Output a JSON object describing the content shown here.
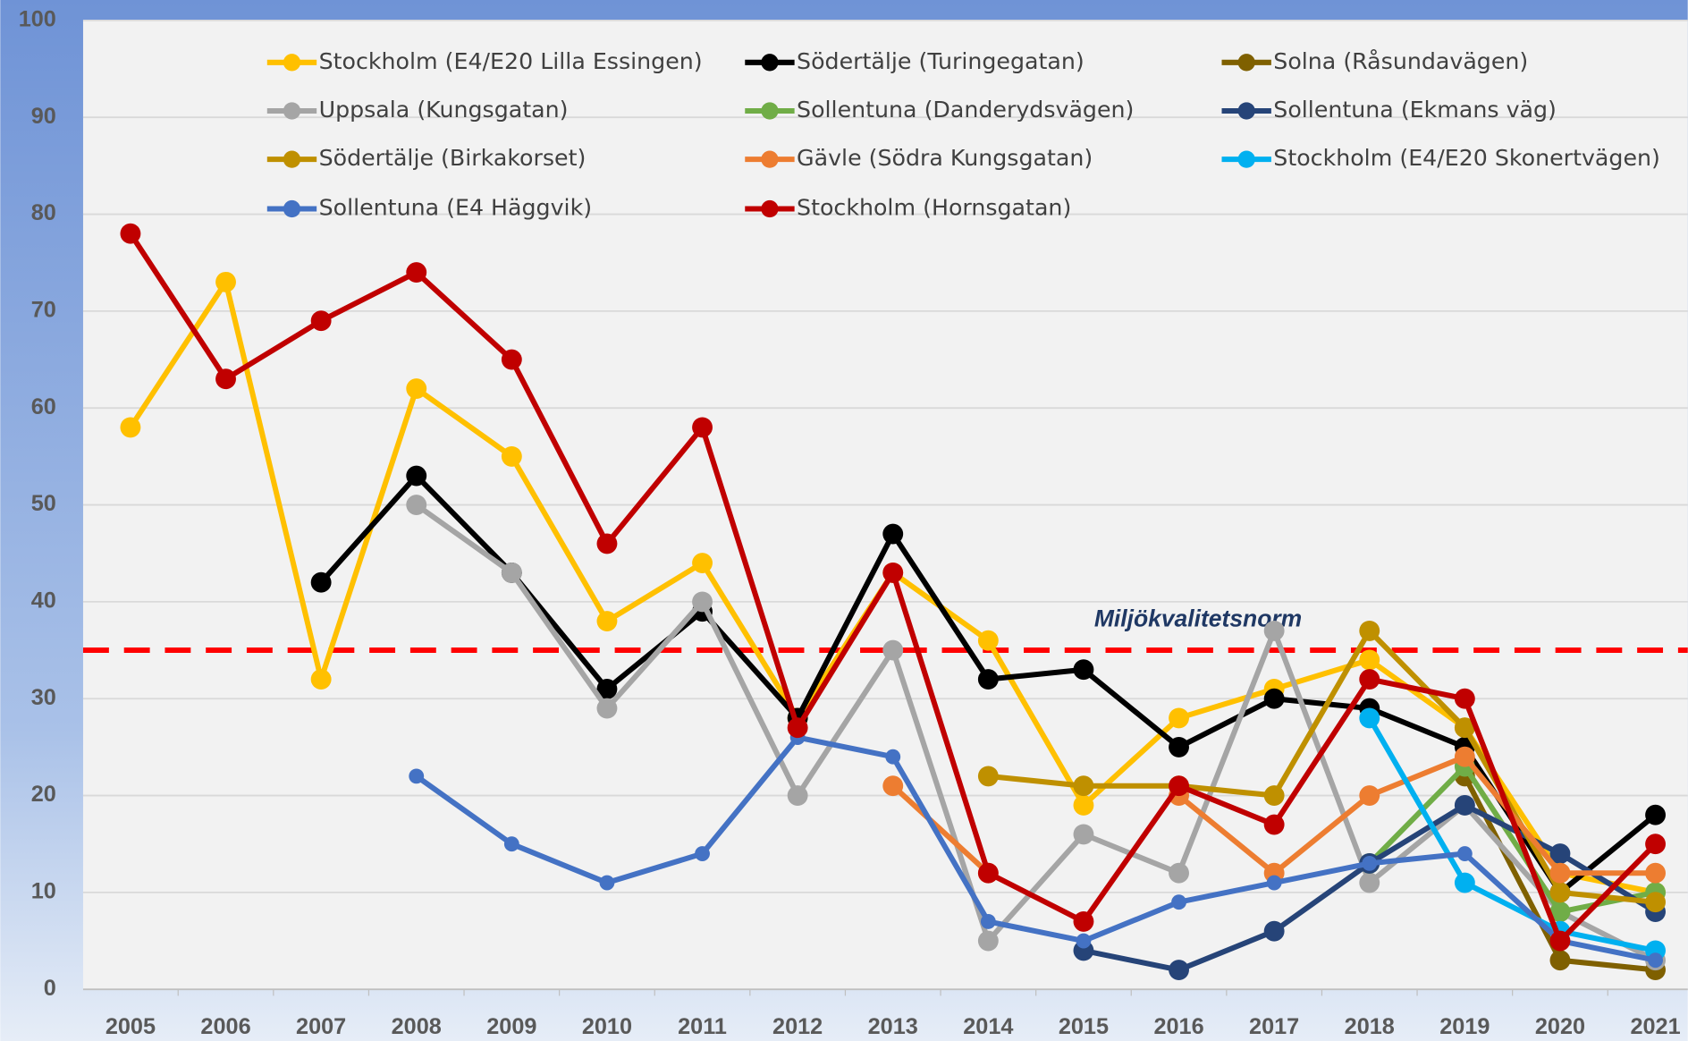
{
  "chart_data": {
    "type": "line",
    "categories": [
      "2005",
      "2006",
      "2007",
      "2008",
      "2009",
      "2010",
      "2011",
      "2012",
      "2013",
      "2014",
      "2015",
      "2016",
      "2017",
      "2018",
      "2019",
      "2020",
      "2021"
    ],
    "ylim": [
      0,
      100
    ],
    "yticks": [
      0,
      10,
      20,
      30,
      40,
      50,
      60,
      70,
      80,
      90,
      100
    ],
    "grid": true,
    "reference_line": {
      "value": 35,
      "label": "Miljökvalitetsnorm",
      "color": "#ff0000"
    },
    "series": [
      {
        "name": "Stockholm (E4/E20 Lilla Essingen)",
        "color": "#FFC000",
        "values": [
          58,
          73,
          32,
          62,
          55,
          38,
          44,
          28,
          43,
          36,
          19,
          28,
          31,
          34,
          27,
          12,
          10
        ]
      },
      {
        "name": "Södertälje (Turingegatan)",
        "color": "#000000",
        "values": [
          null,
          null,
          42,
          53,
          43,
          31,
          39,
          28,
          47,
          32,
          33,
          25,
          30,
          29,
          25,
          10,
          18
        ]
      },
      {
        "name": "Solna (Råsundavägen)",
        "color": "#7F6000",
        "values": [
          null,
          null,
          null,
          null,
          null,
          null,
          null,
          null,
          null,
          null,
          null,
          null,
          null,
          null,
          22,
          3,
          2
        ]
      },
      {
        "name": "Uppsala (Kungsgatan)",
        "color": "#A5A5A5",
        "values": [
          null,
          null,
          null,
          50,
          43,
          29,
          40,
          20,
          35,
          5,
          16,
          12,
          37,
          11,
          19,
          8,
          3
        ]
      },
      {
        "name": "Sollentuna (Danderydsvägen)",
        "color": "#70AD47",
        "values": [
          null,
          null,
          null,
          null,
          null,
          null,
          null,
          null,
          null,
          null,
          null,
          null,
          null,
          13,
          23,
          8,
          10
        ]
      },
      {
        "name": "Sollentuna (Ekmans väg)",
        "color": "#264478",
        "values": [
          null,
          null,
          null,
          null,
          null,
          null,
          null,
          null,
          null,
          null,
          4,
          2,
          6,
          13,
          19,
          14,
          8
        ]
      },
      {
        "name": "Södertälje (Birkakorset)",
        "color": "#BF9000",
        "values": [
          null,
          null,
          null,
          null,
          null,
          null,
          null,
          null,
          null,
          22,
          21,
          21,
          20,
          37,
          27,
          10,
          9
        ]
      },
      {
        "name": "Gävle (Södra Kungsgatan)",
        "color": "#ED7D31",
        "values": [
          null,
          null,
          null,
          null,
          null,
          null,
          null,
          null,
          21,
          12,
          null,
          20,
          12,
          20,
          24,
          12,
          12
        ]
      },
      {
        "name": "Stockholm (E4/E20 Skonertvägen)",
        "color": "#00B0F0",
        "values": [
          null,
          null,
          null,
          null,
          null,
          null,
          null,
          null,
          null,
          null,
          null,
          null,
          null,
          28,
          11,
          6,
          4
        ]
      },
      {
        "name": "Sollentuna (E4 Häggvik)",
        "color": "#4472C4",
        "values": [
          null,
          null,
          null,
          22,
          15,
          11,
          14,
          26,
          24,
          7,
          5,
          9,
          11,
          13,
          14,
          5,
          3
        ]
      },
      {
        "name": "Stockholm (Hornsgatan)",
        "color": "#C00000",
        "values": [
          78,
          63,
          69,
          74,
          65,
          46,
          58,
          27,
          43,
          12,
          7,
          21,
          17,
          32,
          30,
          5,
          15
        ]
      }
    ]
  }
}
